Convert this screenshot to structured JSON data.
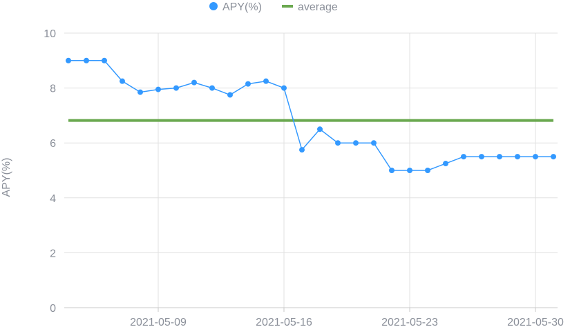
{
  "chart_data": {
    "type": "line",
    "ylabel": "APY(%)",
    "ylim": [
      0,
      10
    ],
    "yticks": [
      0,
      2,
      4,
      6,
      8,
      10
    ],
    "xlim": [
      "2021-05-04",
      "2021-05-31"
    ],
    "xticks": [
      "2021-05-09",
      "2021-05-16",
      "2021-05-23",
      "2021-05-30"
    ],
    "grid": true,
    "legend_position": "top-center",
    "x": [
      "2021-05-04",
      "2021-05-05",
      "2021-05-06",
      "2021-05-07",
      "2021-05-08",
      "2021-05-09",
      "2021-05-10",
      "2021-05-11",
      "2021-05-12",
      "2021-05-13",
      "2021-05-14",
      "2021-05-15",
      "2021-05-16",
      "2021-05-17",
      "2021-05-18",
      "2021-05-19",
      "2021-05-20",
      "2021-05-21",
      "2021-05-22",
      "2021-05-23",
      "2021-05-24",
      "2021-05-25",
      "2021-05-26",
      "2021-05-27",
      "2021-05-28",
      "2021-05-29",
      "2021-05-30",
      "2021-05-31"
    ],
    "series": [
      {
        "name": "APY(%)",
        "color": "#3399ff",
        "values": [
          9.0,
          9.0,
          9.0,
          8.25,
          7.85,
          7.95,
          8.0,
          8.2,
          8.0,
          7.75,
          8.15,
          8.25,
          8.0,
          5.75,
          6.5,
          6.0,
          6.0,
          6.0,
          5.0,
          5.0,
          5.0,
          5.25,
          5.5,
          5.5,
          5.5,
          5.5,
          5.5,
          5.5
        ]
      },
      {
        "name": "average",
        "color": "#6aa84f",
        "values": [
          6.82,
          6.82,
          6.82,
          6.82,
          6.82,
          6.82,
          6.82,
          6.82,
          6.82,
          6.82,
          6.82,
          6.82,
          6.82,
          6.82,
          6.82,
          6.82,
          6.82,
          6.82,
          6.82,
          6.82,
          6.82,
          6.82,
          6.82,
          6.82,
          6.82,
          6.82,
          6.82,
          6.82
        ]
      }
    ]
  }
}
